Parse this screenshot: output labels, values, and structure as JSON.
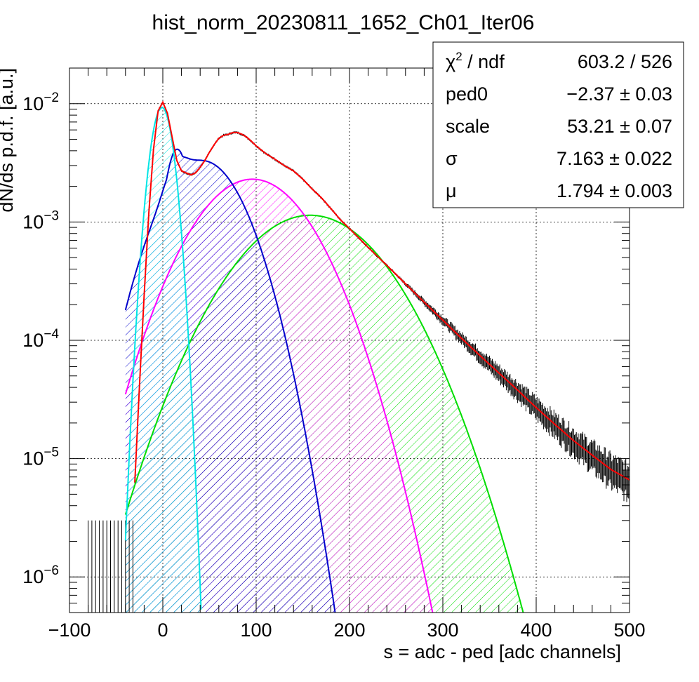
{
  "chart_data": {
    "type": "line",
    "title": "hist_norm_20230811_1652_Ch01_Iter06",
    "xlabel": "s = adc - ped [adc channels]",
    "ylabel": "dN/ds p.d.f. [a.u.]",
    "xlim": [
      -100,
      500
    ],
    "ylim": [
      5e-07,
      0.02
    ],
    "yscale": "log",
    "grid": true,
    "x_ticks": [
      -100,
      0,
      100,
      200,
      300,
      400,
      500
    ],
    "y_tick_labels": [
      {
        "value": 0.01,
        "base": "10",
        "exp": "−2"
      },
      {
        "value": 0.001,
        "base": "10",
        "exp": "−3"
      },
      {
        "value": 0.0001,
        "base": "10",
        "exp": "−4"
      },
      {
        "value": 1e-05,
        "base": "10",
        "exp": "−5"
      },
      {
        "value": 1e-06,
        "base": "10",
        "exp": "−6"
      }
    ],
    "fit_params": {
      "scale": 53.21,
      "sigma": 7.163,
      "mu": 1.794,
      "ped0": -2.37
    },
    "series": [
      {
        "color": "#ff0000",
        "role": "total-fit",
        "data_color": "#000000"
      },
      {
        "color": "#00e5e5",
        "component": 0
      },
      {
        "color": "#0000cc",
        "component": 1
      },
      {
        "color": "#ff00ff",
        "component": 2
      },
      {
        "color": "#00dd00",
        "component": 3
      }
    ],
    "data_points": [
      [
        -30,
        6.3e-06
      ],
      [
        -25,
        4.2e-05
      ],
      [
        -20,
        0.00024
      ],
      [
        -15,
        0.0012
      ],
      [
        -10,
        0.0041
      ],
      [
        -5,
        0.0087
      ],
      [
        0,
        0.0103
      ],
      [
        5,
        0.0083
      ],
      [
        10,
        0.0052
      ],
      [
        15,
        0.0033
      ],
      [
        20,
        0.0027
      ],
      [
        25,
        0.0026
      ],
      [
        30,
        0.0025
      ],
      [
        35,
        0.0026
      ],
      [
        40,
        0.0029
      ],
      [
        45,
        0.0033
      ],
      [
        50,
        0.0039
      ],
      [
        55,
        0.0045
      ],
      [
        60,
        0.0051
      ],
      [
        65,
        0.0054
      ],
      [
        70,
        0.0055
      ],
      [
        75,
        0.0057
      ],
      [
        80,
        0.0057
      ],
      [
        85,
        0.0055
      ],
      [
        90,
        0.0052
      ],
      [
        95,
        0.0048
      ],
      [
        100,
        0.0044
      ],
      [
        110,
        0.0038
      ],
      [
        120,
        0.0034
      ],
      [
        130,
        0.003
      ],
      [
        140,
        0.0027
      ],
      [
        150,
        0.0023
      ],
      [
        160,
        0.0019
      ],
      [
        170,
        0.0016
      ],
      [
        180,
        0.0013
      ],
      [
        190,
        0.00105
      ],
      [
        200,
        0.00088
      ],
      [
        220,
        0.00061
      ],
      [
        240,
        0.00043
      ],
      [
        260,
        0.0003
      ],
      [
        280,
        0.00021
      ],
      [
        300,
        0.000148
      ],
      [
        320,
        0.000104
      ],
      [
        340,
        7.4e-05
      ],
      [
        360,
        5.3e-05
      ],
      [
        380,
        3.8e-05
      ],
      [
        400,
        2.7e-05
      ],
      [
        420,
        1.95e-05
      ],
      [
        440,
        1.42e-05
      ],
      [
        460,
        1.07e-05
      ],
      [
        480,
        8.1e-06
      ],
      [
        500,
        6.6e-06
      ]
    ]
  },
  "stats_box": {
    "rows": [
      {
        "label_main": "χ",
        "label_sup": "2",
        "label_rest": " / ndf",
        "value": "603.2 / 526"
      },
      {
        "label_main": "ped0",
        "label_sup": "",
        "label_rest": "",
        "value": "−2.37 ± 0.03"
      },
      {
        "label_main": "scale",
        "label_sup": "",
        "label_rest": "",
        "value": "53.21 ± 0.07"
      },
      {
        "label_main": "σ",
        "label_sup": "",
        "label_rest": "",
        "value": "7.163 ± 0.022"
      },
      {
        "label_main": "μ",
        "label_sup": "",
        "label_rest": "",
        "value": "1.794 ± 0.003"
      }
    ]
  }
}
